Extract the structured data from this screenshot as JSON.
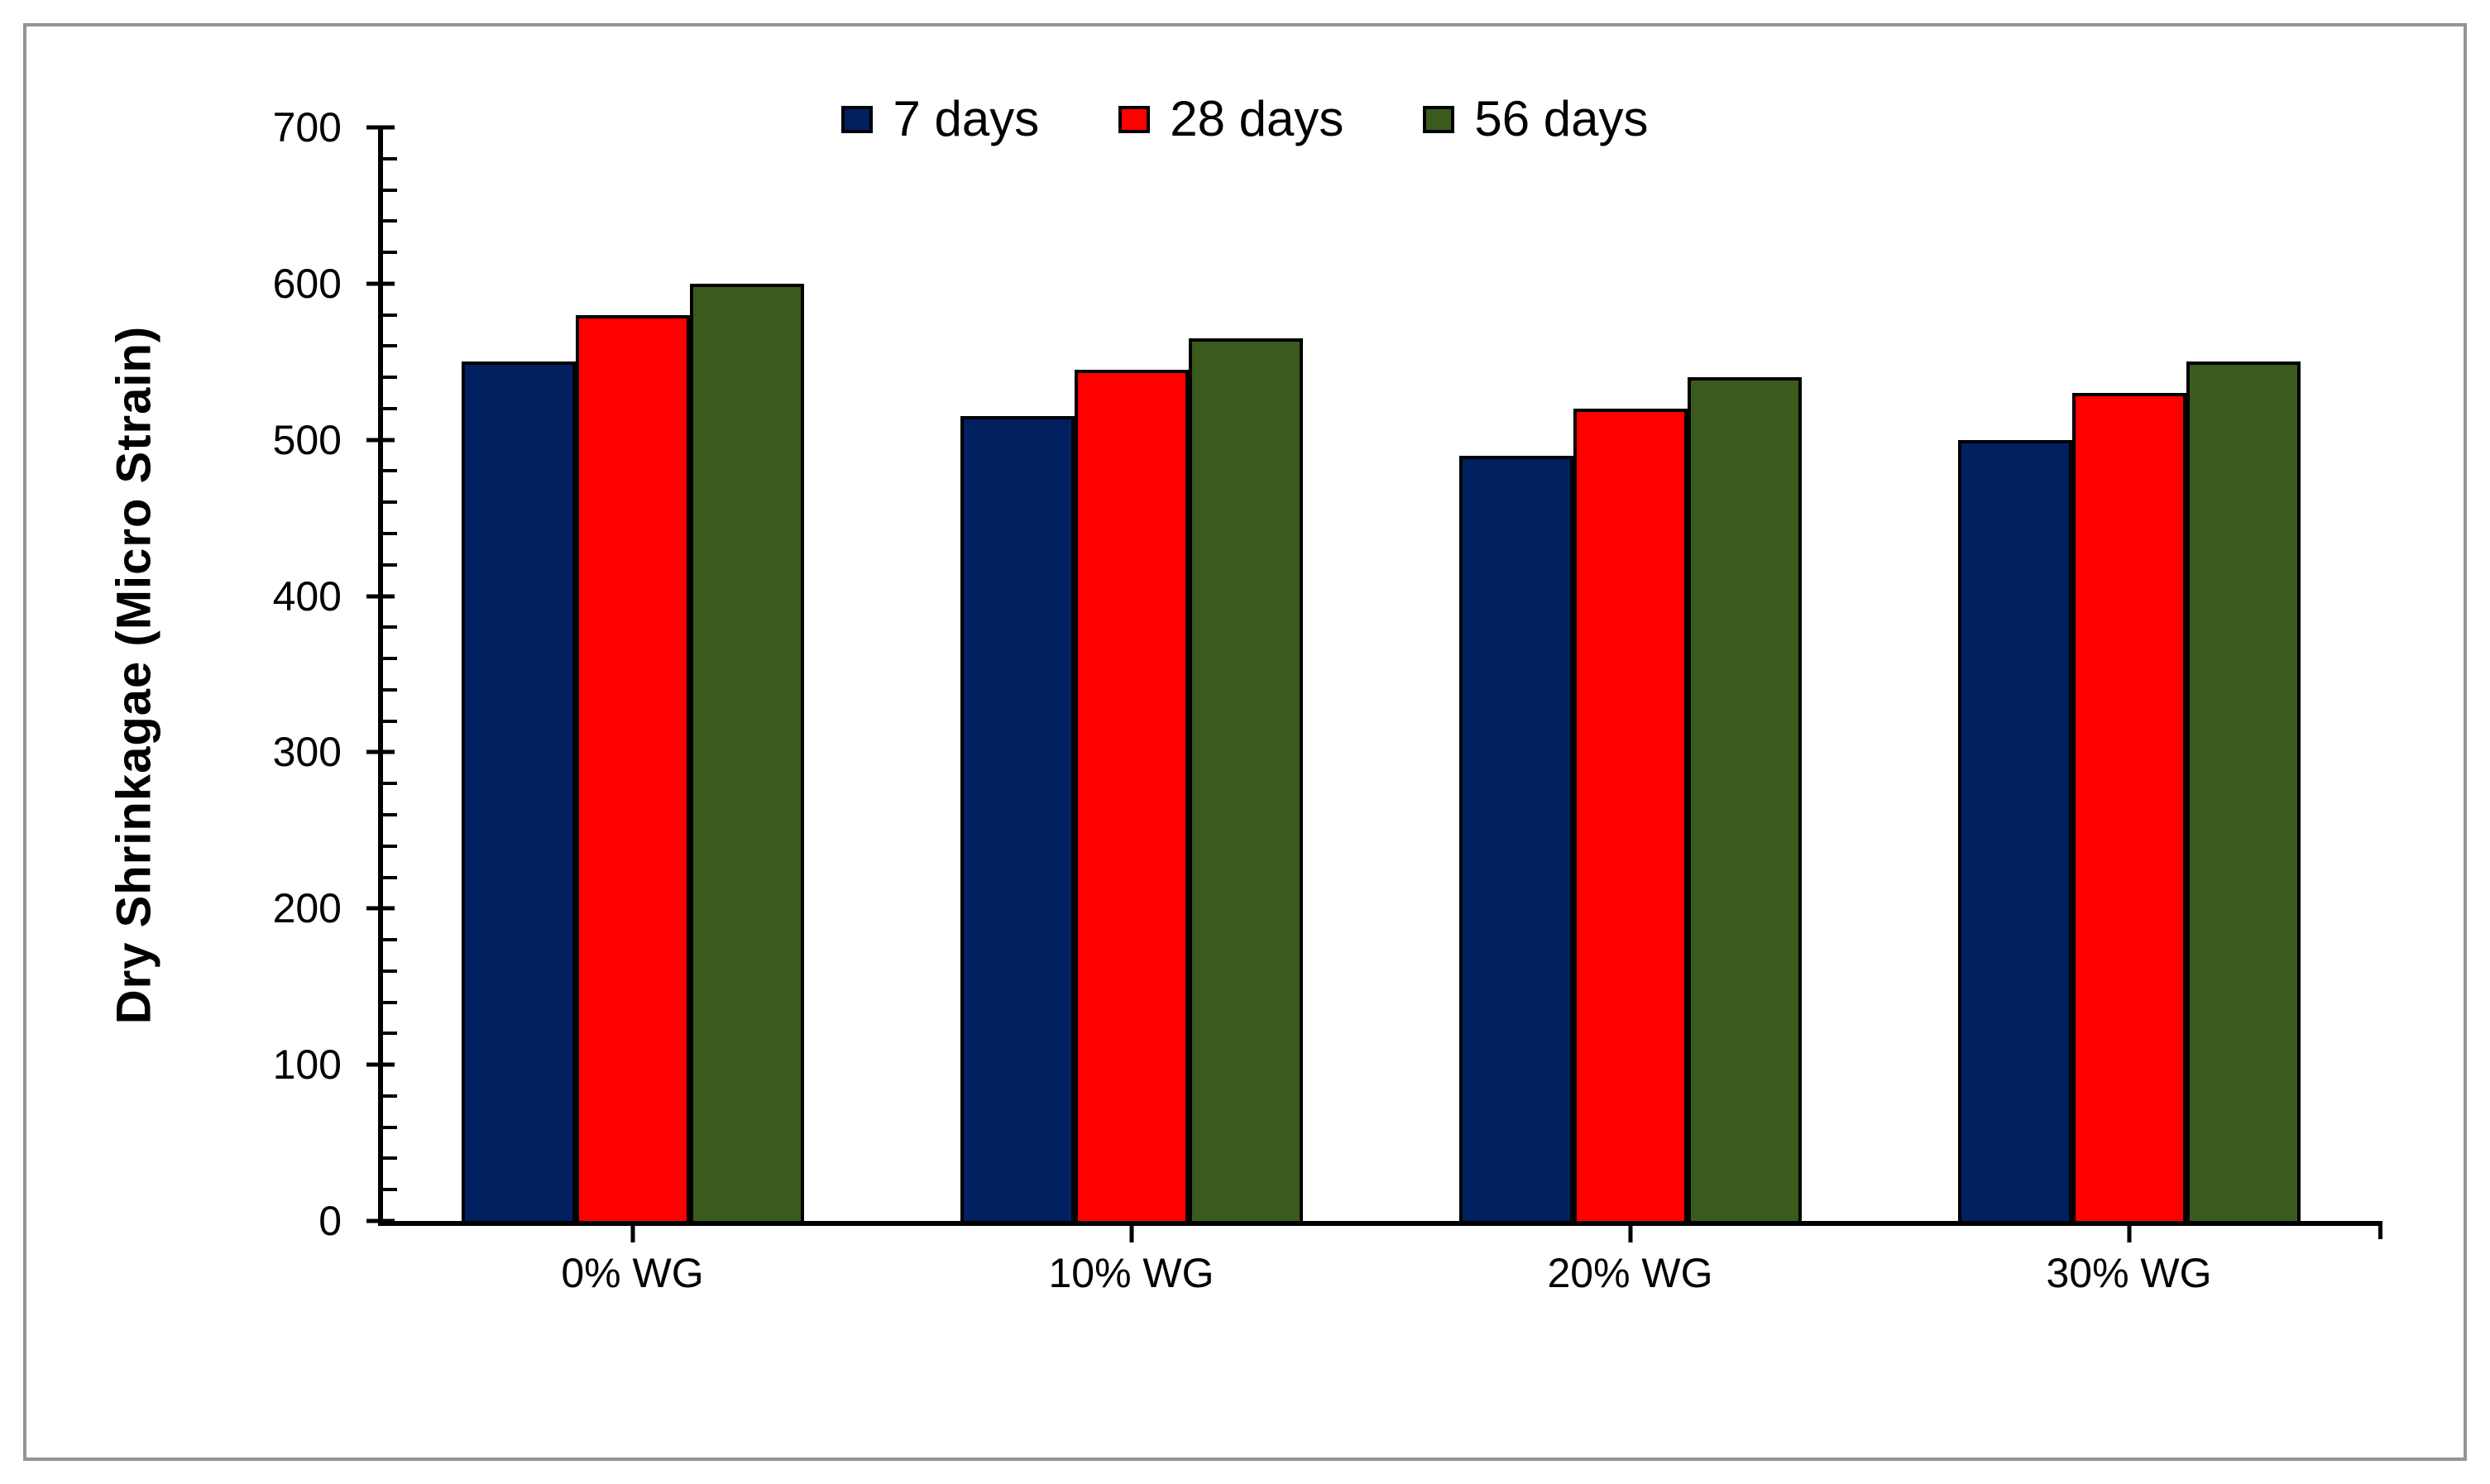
{
  "figure": {
    "border_color": "#949494",
    "background": "#FFFFFF"
  },
  "chart_data": {
    "type": "bar",
    "title": "",
    "categories": [
      "0% WG",
      "10% WG",
      "20% WG",
      "30% WG"
    ],
    "series": [
      {
        "name": "7 days",
        "color": "#002060",
        "values": [
          550,
          515,
          490,
          500
        ]
      },
      {
        "name": "28 days",
        "color": "#FF0000",
        "values": [
          580,
          545,
          520,
          530
        ]
      },
      {
        "name": "56 days",
        "color": "#3A5A1E",
        "values": [
          600,
          565,
          540,
          550
        ]
      }
    ],
    "xlabel": "",
    "ylabel": "Dry Shrinkagae (Micro Strain)",
    "ylim": [
      0,
      700
    ],
    "y_major_tick_step": 100,
    "y_minor_tick_step": 20,
    "y_tick_labels": [
      "0",
      "100",
      "200",
      "300",
      "400",
      "500",
      "600",
      "700"
    ],
    "legend_position": "top",
    "grid": false,
    "bar_outline_color": "#000000",
    "axis_color": "#000000"
  }
}
